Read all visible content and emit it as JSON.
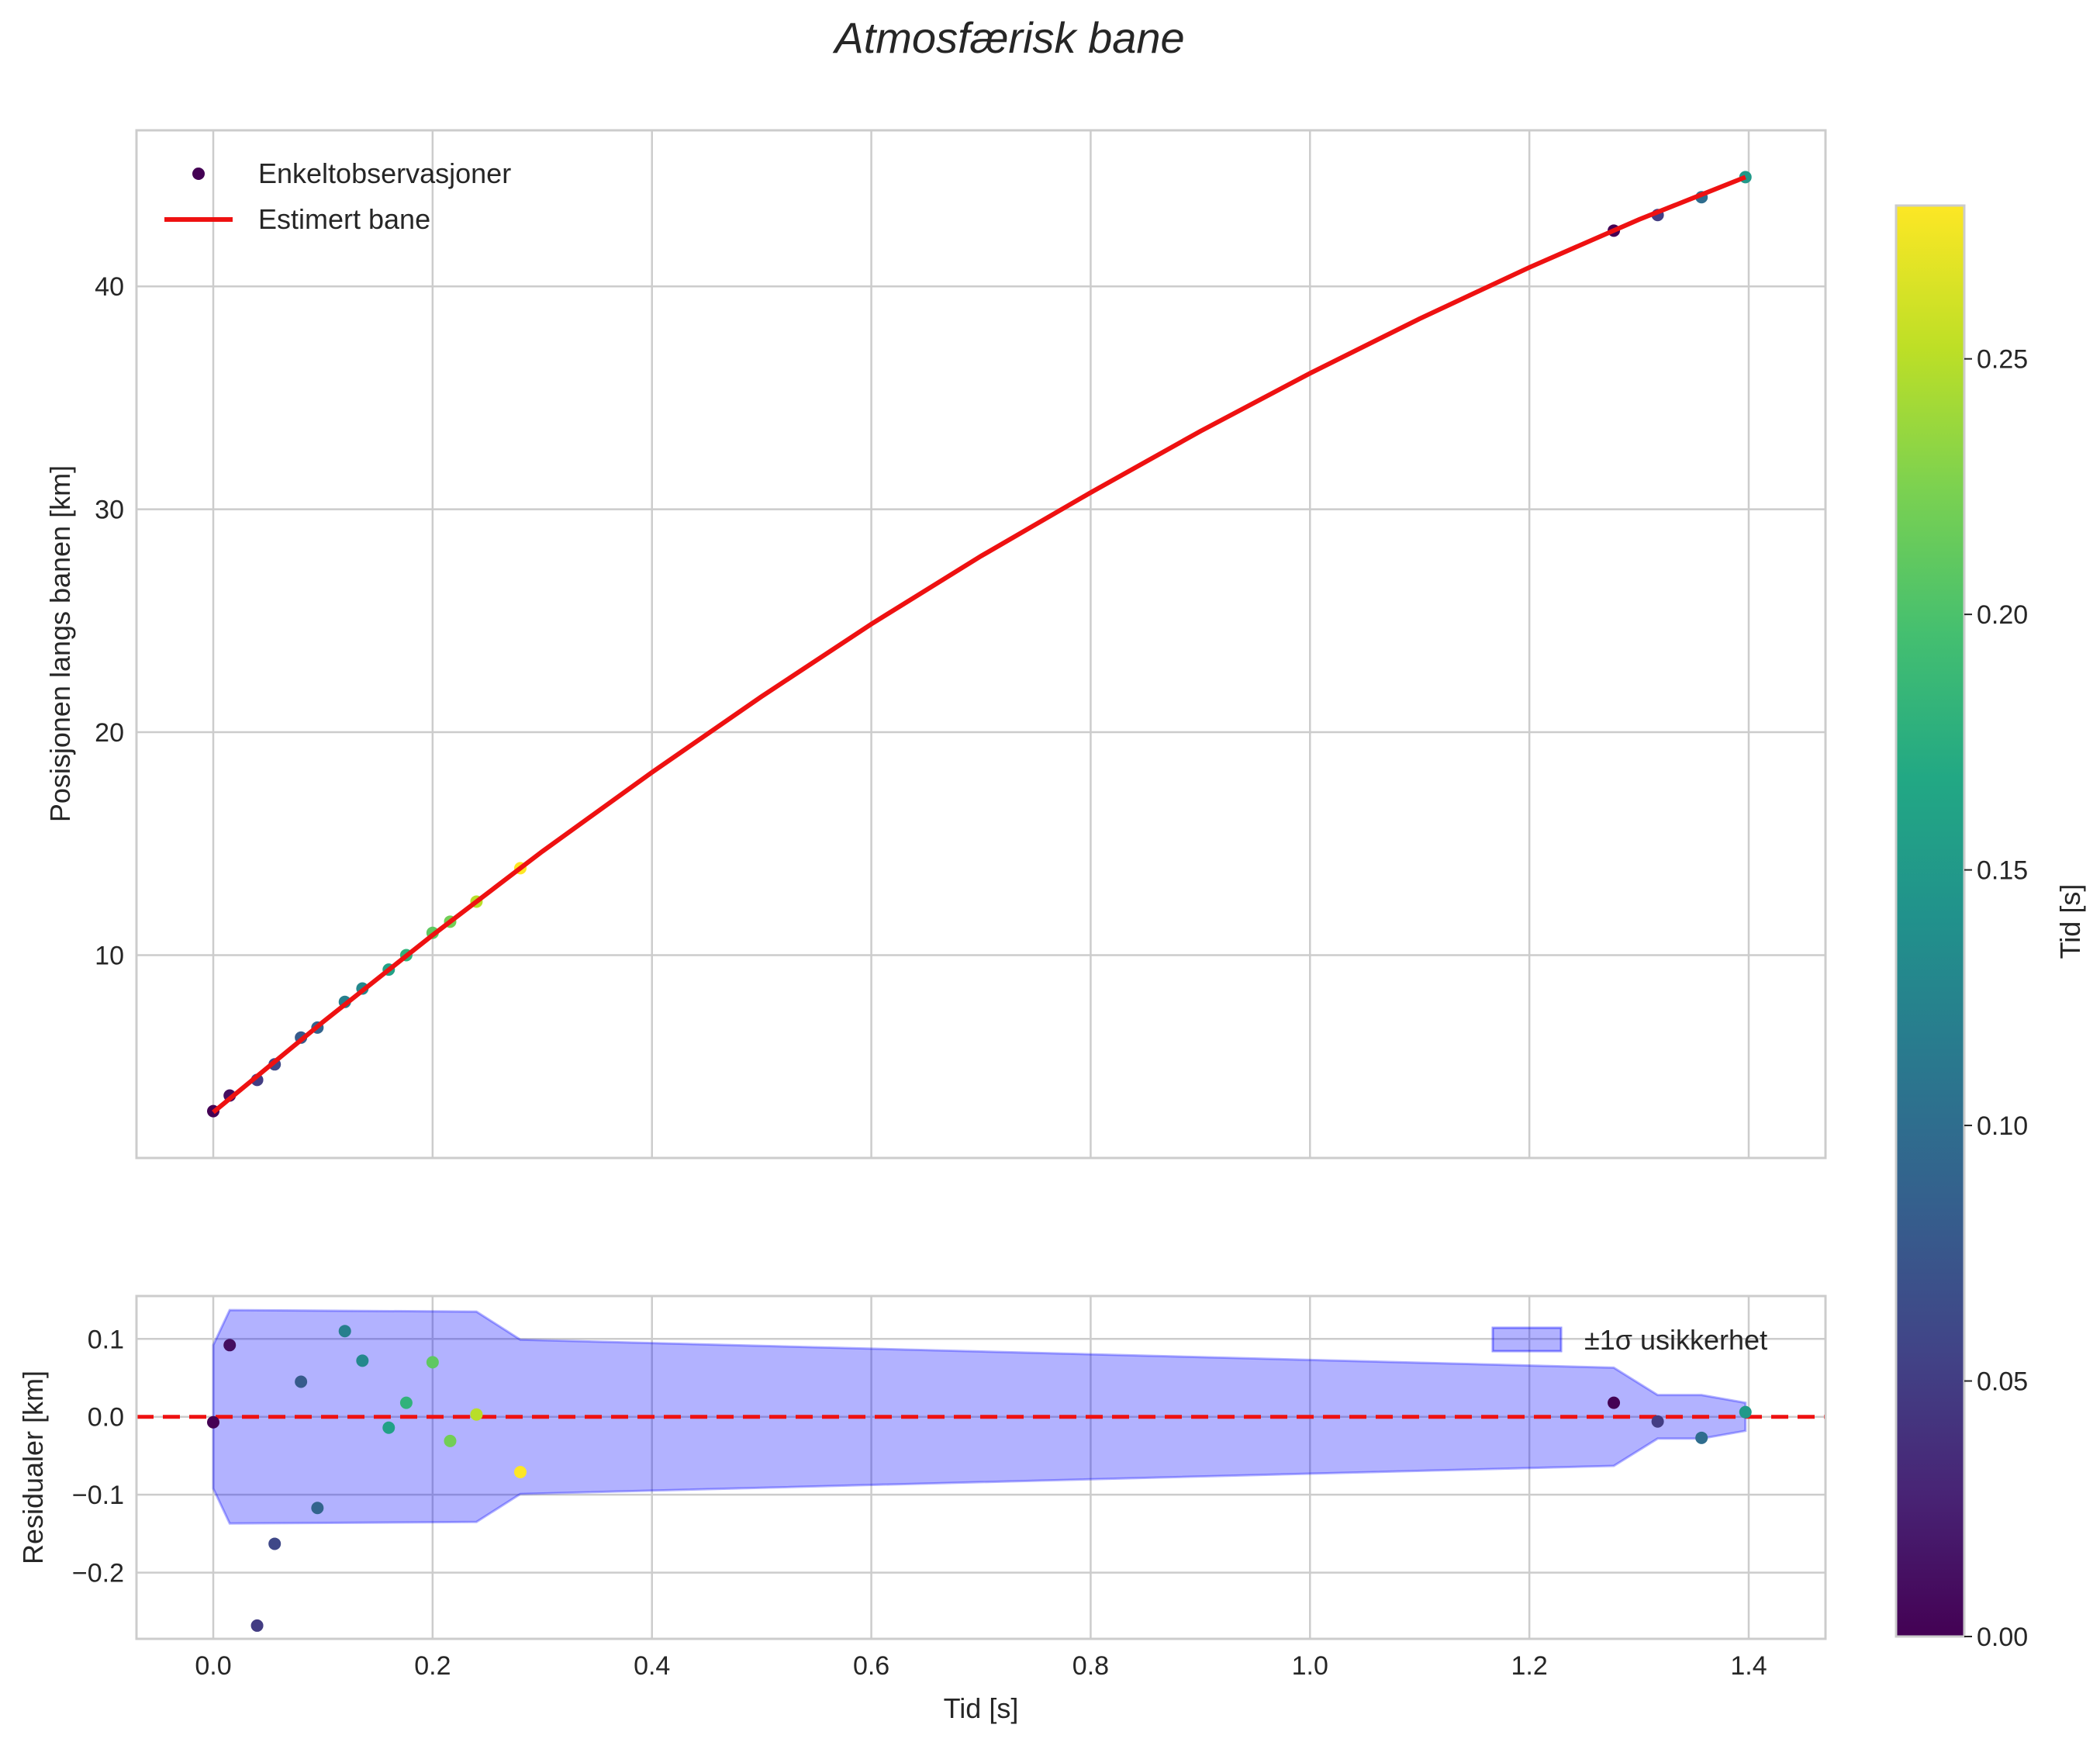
{
  "chart_data": {
    "title": "Atmosfærisk bane",
    "xlabel": "Tid [s]",
    "xlim": [
      -0.07,
      1.47
    ],
    "xticks": [
      0.0,
      0.2,
      0.4,
      0.6,
      0.8,
      1.0,
      1.2,
      1.4
    ],
    "xtick_labels": [
      "0.0",
      "0.2",
      "0.4",
      "0.6",
      "0.8",
      "1.0",
      "1.2",
      "1.4"
    ],
    "top": {
      "type": "scatter+line",
      "ylabel": "Posisjonen langs banen [km]",
      "ylim": [
        0.9,
        47.0
      ],
      "yticks": [
        10,
        20,
        30,
        40
      ],
      "ytick_labels": [
        "10",
        "20",
        "30",
        "40"
      ],
      "legend": {
        "position": "top-left",
        "scatter_label": "Enkeltobservasjoner",
        "line_label": "Estimert bane"
      },
      "observations": [
        {
          "t": 0.0,
          "pos": 3.0,
          "c": 0.0
        },
        {
          "t": 0.015,
          "pos": 3.7,
          "c": 0.01
        },
        {
          "t": 0.04,
          "pos": 4.4,
          "c": 0.05
        },
        {
          "t": 0.056,
          "pos": 5.1,
          "c": 0.06
        },
        {
          "t": 0.08,
          "pos": 6.3,
          "c": 0.08
        },
        {
          "t": 0.095,
          "pos": 6.75,
          "c": 0.09
        },
        {
          "t": 0.12,
          "pos": 7.9,
          "c": 0.12
        },
        {
          "t": 0.136,
          "pos": 8.5,
          "c": 0.13
        },
        {
          "t": 0.16,
          "pos": 9.35,
          "c": 0.16
        },
        {
          "t": 0.176,
          "pos": 10.0,
          "c": 0.18
        },
        {
          "t": 0.2,
          "pos": 11.0,
          "c": 0.21
        },
        {
          "t": 0.216,
          "pos": 11.5,
          "c": 0.22
        },
        {
          "t": 0.24,
          "pos": 12.4,
          "c": 0.25
        },
        {
          "t": 0.28,
          "pos": 13.9,
          "c": 0.28
        },
        {
          "t": 1.277,
          "pos": 42.5,
          "c": 0.0
        },
        {
          "t": 1.317,
          "pos": 43.2,
          "c": 0.05
        },
        {
          "t": 1.357,
          "pos": 44.0,
          "c": 0.1
        },
        {
          "t": 1.397,
          "pos": 44.9,
          "c": 0.15
        }
      ],
      "estimated_line": {
        "t": [
          0.0,
          0.1,
          0.2,
          0.3,
          0.4,
          0.5,
          0.6,
          0.7,
          0.8,
          0.9,
          1.0,
          1.1,
          1.2,
          1.3,
          1.397
        ],
        "pos": [
          2.95,
          7.0,
          10.9,
          14.65,
          18.2,
          21.6,
          24.85,
          27.9,
          30.75,
          33.5,
          36.1,
          38.55,
          40.85,
          43.0,
          44.9
        ]
      }
    },
    "bottom": {
      "type": "scatter+band",
      "ylabel": "Residualer [km]",
      "ylim": [
        -0.285,
        0.155
      ],
      "yticks": [
        -0.2,
        -0.1,
        0.0,
        0.1
      ],
      "ytick_labels": [
        "−0.2",
        "−0.1",
        "0.0",
        "0.1"
      ],
      "zero_line": 0.0,
      "legend": {
        "position": "top-right",
        "band_label": "±1σ usikkerhet"
      },
      "residuals": [
        {
          "t": 0.0,
          "r": -0.007,
          "c": 0.0
        },
        {
          "t": 0.015,
          "r": 0.092,
          "c": 0.01
        },
        {
          "t": 0.04,
          "r": -0.268,
          "c": 0.05
        },
        {
          "t": 0.056,
          "r": -0.163,
          "c": 0.06
        },
        {
          "t": 0.08,
          "r": 0.045,
          "c": 0.08
        },
        {
          "t": 0.095,
          "r": -0.117,
          "c": 0.09
        },
        {
          "t": 0.12,
          "r": 0.11,
          "c": 0.12
        },
        {
          "t": 0.136,
          "r": 0.072,
          "c": 0.13
        },
        {
          "t": 0.16,
          "r": -0.014,
          "c": 0.16
        },
        {
          "t": 0.176,
          "r": 0.018,
          "c": 0.18
        },
        {
          "t": 0.2,
          "r": 0.07,
          "c": 0.21
        },
        {
          "t": 0.216,
          "r": -0.031,
          "c": 0.22
        },
        {
          "t": 0.24,
          "r": 0.003,
          "c": 0.25
        },
        {
          "t": 0.28,
          "r": -0.071,
          "c": 0.28
        },
        {
          "t": 1.277,
          "r": 0.018,
          "c": 0.0
        },
        {
          "t": 1.317,
          "r": -0.006,
          "c": 0.05
        },
        {
          "t": 1.357,
          "r": -0.027,
          "c": 0.1
        },
        {
          "t": 1.397,
          "r": 0.006,
          "c": 0.15
        }
      ],
      "sigma_band": {
        "t": [
          0.0,
          0.015,
          0.24,
          0.28,
          1.277,
          1.317,
          1.357,
          1.397
        ],
        "sigma": [
          0.092,
          0.137,
          0.135,
          0.099,
          0.063,
          0.028,
          0.028,
          0.018
        ]
      }
    },
    "colorbar": {
      "label": "Tid [s]",
      "cmap": "viridis",
      "range": [
        0.0,
        0.28
      ],
      "ticks": [
        0.0,
        0.05,
        0.1,
        0.15,
        0.2,
        0.25
      ],
      "tick_labels": [
        "0.00",
        "0.05",
        "0.10",
        "0.15",
        "0.20",
        "0.25"
      ]
    },
    "colors": {
      "line": "#ee1111",
      "band": "#0000ff",
      "zero_line": "#ee1111",
      "grid": "#cccccc"
    }
  }
}
